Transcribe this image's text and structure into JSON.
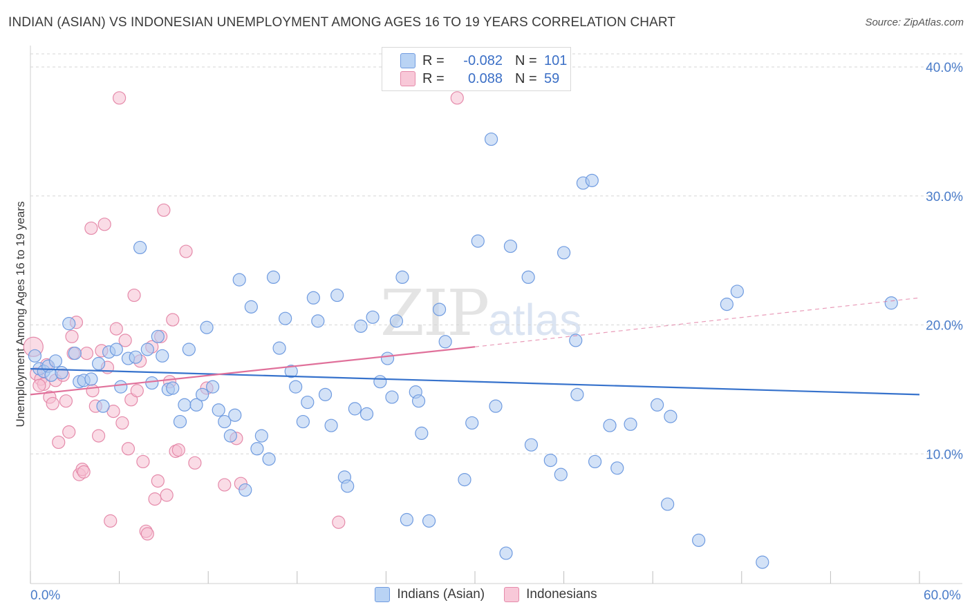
{
  "header": {
    "title": "INDIAN (ASIAN) VS INDONESIAN UNEMPLOYMENT AMONG AGES 16 TO 19 YEARS CORRELATION CHART",
    "source": "Source: ZipAtlas.com"
  },
  "watermark": {
    "zip": "ZIP",
    "atlas": "atlas"
  },
  "stats": {
    "r_label": "R =",
    "n_label": "N =",
    "rows": [
      {
        "r": "-0.082",
        "n": "101"
      },
      {
        "r": "0.088",
        "n": "59"
      }
    ]
  },
  "x_axis": {
    "min_label": "0.0%",
    "max_label": "60.0%"
  },
  "legend": {
    "series1": "Indians (Asian)",
    "series2": "Indonesians"
  },
  "colors": {
    "blue_fill": "#aecbf0",
    "blue_stroke": "#6f9be0",
    "blue_line": "#3672cc",
    "pink_fill": "#f6c0d2",
    "pink_stroke": "#e58aaa",
    "pink_line": "#e0709a",
    "tick_label": "#4a7cc9",
    "grid": "#d6d6d6"
  },
  "chart_data": {
    "type": "scatter",
    "title": "INDIAN (ASIAN) VS INDONESIAN UNEMPLOYMENT AMONG AGES 16 TO 19 YEARS CORRELATION CHART",
    "xlabel": "",
    "ylabel": "Unemployment Among Ages 16 to 19 years",
    "xlim": [
      0,
      60
    ],
    "ylim": [
      0,
      40
    ],
    "yticks": [
      10,
      20,
      30,
      40
    ],
    "ytick_labels": [
      "10.0%",
      "20.0%",
      "30.0%",
      "40.0%"
    ],
    "grid": true,
    "legend_position": "bottom",
    "series": [
      {
        "name": "Indians (Asian)",
        "r": -0.082,
        "n": 101,
        "trend": {
          "x": [
            0,
            60
          ],
          "y": [
            16.6,
            14.6
          ],
          "style": "solid"
        },
        "points": [
          [
            0.3,
            17.6
          ],
          [
            0.6,
            16.6
          ],
          [
            0.9,
            16.4
          ],
          [
            1.2,
            16.8
          ],
          [
            1.4,
            16.1
          ],
          [
            1.7,
            17.2
          ],
          [
            2.1,
            16.3
          ],
          [
            2.6,
            20.1
          ],
          [
            3.0,
            17.8
          ],
          [
            3.3,
            15.6
          ],
          [
            3.6,
            15.7
          ],
          [
            4.1,
            15.8
          ],
          [
            4.6,
            17.0
          ],
          [
            4.9,
            13.7
          ],
          [
            5.3,
            17.9
          ],
          [
            5.8,
            18.1
          ],
          [
            6.1,
            15.2
          ],
          [
            6.6,
            17.4
          ],
          [
            7.1,
            17.5
          ],
          [
            7.4,
            26.0
          ],
          [
            7.9,
            18.1
          ],
          [
            8.2,
            15.5
          ],
          [
            8.6,
            19.1
          ],
          [
            8.9,
            17.6
          ],
          [
            9.3,
            15.0
          ],
          [
            9.6,
            15.1
          ],
          [
            10.1,
            12.5
          ],
          [
            10.4,
            13.8
          ],
          [
            10.7,
            18.1
          ],
          [
            11.2,
            13.8
          ],
          [
            11.6,
            14.6
          ],
          [
            11.9,
            19.8
          ],
          [
            12.3,
            15.2
          ],
          [
            12.7,
            13.4
          ],
          [
            13.1,
            12.5
          ],
          [
            13.5,
            11.4
          ],
          [
            13.8,
            13.0
          ],
          [
            14.1,
            23.5
          ],
          [
            14.5,
            7.2
          ],
          [
            14.9,
            21.4
          ],
          [
            15.3,
            10.4
          ],
          [
            15.6,
            11.4
          ],
          [
            16.1,
            9.6
          ],
          [
            16.4,
            23.7
          ],
          [
            16.8,
            18.2
          ],
          [
            17.2,
            20.5
          ],
          [
            17.6,
            16.4
          ],
          [
            17.9,
            15.2
          ],
          [
            18.4,
            12.5
          ],
          [
            18.7,
            14.0
          ],
          [
            19.1,
            22.1
          ],
          [
            19.4,
            20.3
          ],
          [
            19.9,
            14.6
          ],
          [
            20.3,
            12.2
          ],
          [
            20.7,
            22.3
          ],
          [
            21.2,
            8.2
          ],
          [
            21.4,
            7.5
          ],
          [
            21.9,
            13.5
          ],
          [
            22.3,
            19.9
          ],
          [
            22.7,
            13.1
          ],
          [
            23.1,
            20.6
          ],
          [
            23.6,
            15.6
          ],
          [
            24.1,
            17.4
          ],
          [
            24.4,
            14.4
          ],
          [
            24.7,
            20.3
          ],
          [
            25.1,
            23.7
          ],
          [
            25.4,
            4.9
          ],
          [
            26.0,
            14.8
          ],
          [
            26.2,
            14.1
          ],
          [
            26.4,
            11.6
          ],
          [
            26.9,
            4.8
          ],
          [
            27.6,
            21.2
          ],
          [
            28.0,
            18.7
          ],
          [
            29.3,
            8.0
          ],
          [
            29.8,
            12.4
          ],
          [
            30.2,
            26.5
          ],
          [
            31.1,
            34.4
          ],
          [
            31.4,
            13.7
          ],
          [
            32.1,
            2.3
          ],
          [
            32.4,
            26.1
          ],
          [
            33.6,
            23.7
          ],
          [
            33.8,
            10.7
          ],
          [
            35.1,
            9.5
          ],
          [
            35.8,
            8.4
          ],
          [
            36.0,
            25.6
          ],
          [
            36.8,
            18.8
          ],
          [
            36.9,
            14.6
          ],
          [
            37.3,
            31.0
          ],
          [
            37.9,
            31.2
          ],
          [
            38.1,
            9.4
          ],
          [
            39.1,
            12.2
          ],
          [
            39.6,
            8.9
          ],
          [
            40.5,
            12.3
          ],
          [
            42.3,
            13.8
          ],
          [
            43.0,
            6.1
          ],
          [
            43.2,
            12.9
          ],
          [
            45.1,
            3.3
          ],
          [
            47.0,
            21.6
          ],
          [
            47.7,
            22.6
          ],
          [
            49.4,
            1.6
          ],
          [
            58.1,
            21.7
          ]
        ]
      },
      {
        "name": "Indonesians",
        "r": 0.088,
        "n": 59,
        "trend": {
          "x": [
            0,
            30
          ],
          "y": [
            14.6,
            18.3
          ],
          "style": "solid",
          "extended_x": [
            30,
            60
          ],
          "extended_y": [
            18.3,
            22.1
          ],
          "extended_style": "dashed"
        },
        "points": [
          [
            0.2,
            18.3
          ],
          [
            0.4,
            16.2
          ],
          [
            0.7,
            15.8
          ],
          [
            0.9,
            15.4
          ],
          [
            1.1,
            16.9
          ],
          [
            1.3,
            14.4
          ],
          [
            1.5,
            13.9
          ],
          [
            1.7,
            15.7
          ],
          [
            1.9,
            10.9
          ],
          [
            2.2,
            16.1
          ],
          [
            2.4,
            14.1
          ],
          [
            2.6,
            11.7
          ],
          [
            2.8,
            19.1
          ],
          [
            2.9,
            17.8
          ],
          [
            3.1,
            20.2
          ],
          [
            3.3,
            8.4
          ],
          [
            3.5,
            8.8
          ],
          [
            3.6,
            8.6
          ],
          [
            3.8,
            17.8
          ],
          [
            4.1,
            27.5
          ],
          [
            4.2,
            14.9
          ],
          [
            4.4,
            13.7
          ],
          [
            4.6,
            11.4
          ],
          [
            4.8,
            18.0
          ],
          [
            5.0,
            27.8
          ],
          [
            5.2,
            16.7
          ],
          [
            5.4,
            4.8
          ],
          [
            5.6,
            13.3
          ],
          [
            5.8,
            19.7
          ],
          [
            6.0,
            37.6
          ],
          [
            6.2,
            12.4
          ],
          [
            6.4,
            18.8
          ],
          [
            6.6,
            10.4
          ],
          [
            6.8,
            14.2
          ],
          [
            7.0,
            22.3
          ],
          [
            7.2,
            14.9
          ],
          [
            7.4,
            17.2
          ],
          [
            7.6,
            9.4
          ],
          [
            7.8,
            4.0
          ],
          [
            7.9,
            3.8
          ],
          [
            8.2,
            18.3
          ],
          [
            8.4,
            6.5
          ],
          [
            8.6,
            7.9
          ],
          [
            8.8,
            19.1
          ],
          [
            9.0,
            28.9
          ],
          [
            9.2,
            6.8
          ],
          [
            9.4,
            15.6
          ],
          [
            9.6,
            20.4
          ],
          [
            9.8,
            10.2
          ],
          [
            10.0,
            10.3
          ],
          [
            10.5,
            25.7
          ],
          [
            11.1,
            9.3
          ],
          [
            11.9,
            15.1
          ],
          [
            13.1,
            7.6
          ],
          [
            13.9,
            11.2
          ],
          [
            14.2,
            7.7
          ],
          [
            20.8,
            4.7
          ],
          [
            28.8,
            37.6
          ],
          [
            0.6,
            15.3
          ]
        ]
      }
    ]
  }
}
